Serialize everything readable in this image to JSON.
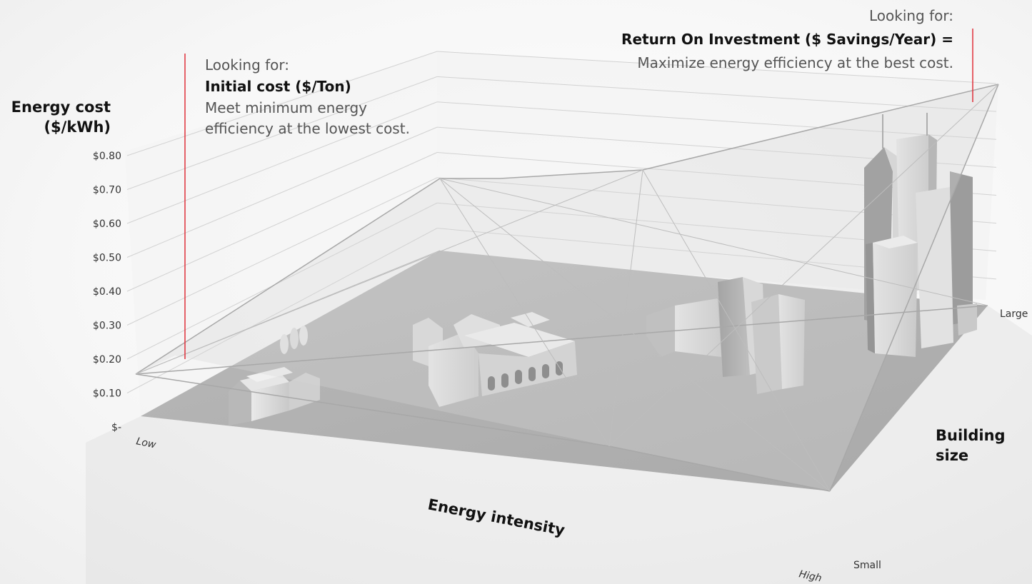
{
  "chart_data": {
    "type": "3d-surface-diagram",
    "y_axis": {
      "label_line1": "Energy cost",
      "label_line2": "($/kWh)",
      "ticks": [
        "$-",
        "$0.10",
        "$0.20",
        "$0.30",
        "$0.40",
        "$0.50",
        "$0.60",
        "$0.70",
        "$0.80"
      ],
      "range": [
        0,
        0.8
      ]
    },
    "x_axis": {
      "label": "Energy intensity",
      "ticks": [
        "Low",
        "High"
      ]
    },
    "z_axis": {
      "label_line1": "Building",
      "label_line2": "size",
      "ticks": [
        "Small",
        "Large"
      ]
    },
    "annotations": [
      {
        "heading": "Looking for:",
        "title": "Initial cost ($/Ton)",
        "text_line1": "Meet minimum energy",
        "text_line2": "efficiency at the lowest cost.",
        "marker_color": "#e0303a"
      },
      {
        "heading": "Looking for:",
        "title": "Return On Investment ($ Savings/Year) =",
        "text_line1": "Maximize energy efficiency at the best cost.",
        "marker_color": "#e0303a"
      }
    ],
    "buildings": [
      "small-houses",
      "institutional-campus",
      "office-blocks",
      "skyscrapers"
    ]
  }
}
